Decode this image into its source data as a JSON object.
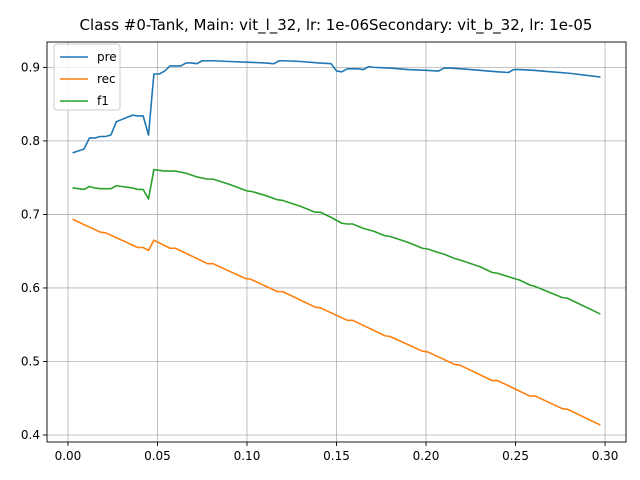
{
  "chart_data": {
    "type": "line",
    "title": "Class #0-Tank, Main: vit_l_32, lr: 1e-06Secondary: vit_b_32, lr: 1e-05",
    "xlabel": "",
    "ylabel": "",
    "xlim": [
      -0.0117,
      0.3117
    ],
    "ylim": [
      0.3905,
      0.9345
    ],
    "x_ticks": [
      0.0,
      0.05,
      0.1,
      0.15,
      0.2,
      0.25,
      0.3
    ],
    "x_tick_labels": [
      "0.00",
      "0.05",
      "0.10",
      "0.15",
      "0.20",
      "0.25",
      "0.30"
    ],
    "y_ticks": [
      0.4,
      0.5,
      0.6,
      0.7,
      0.8,
      0.9
    ],
    "y_tick_labels": [
      "0.4",
      "0.5",
      "0.6",
      "0.7",
      "0.8",
      "0.9"
    ],
    "grid": true,
    "legend_position": "upper-left",
    "series": [
      {
        "name": "pre",
        "color": "#1f77b4",
        "x": [
          0.003,
          0.009,
          0.012,
          0.015,
          0.018,
          0.021,
          0.024,
          0.027,
          0.03,
          0.033,
          0.036,
          0.039,
          0.042,
          0.045,
          0.048,
          0.051,
          0.054,
          0.057,
          0.06,
          0.063,
          0.066,
          0.069,
          0.072,
          0.075,
          0.078,
          0.081,
          0.09,
          0.1,
          0.11,
          0.115,
          0.118,
          0.121,
          0.13,
          0.14,
          0.147,
          0.15,
          0.153,
          0.156,
          0.159,
          0.162,
          0.165,
          0.168,
          0.171,
          0.18,
          0.19,
          0.2,
          0.207,
          0.21,
          0.213,
          0.22,
          0.23,
          0.24,
          0.246,
          0.249,
          0.252,
          0.26,
          0.27,
          0.28,
          0.297
        ],
        "y": [
          0.784,
          0.789,
          0.804,
          0.804,
          0.806,
          0.806,
          0.808,
          0.826,
          0.829,
          0.832,
          0.835,
          0.834,
          0.834,
          0.808,
          0.891,
          0.891,
          0.895,
          0.902,
          0.902,
          0.902,
          0.906,
          0.906,
          0.905,
          0.909,
          0.909,
          0.909,
          0.908,
          0.907,
          0.906,
          0.905,
          0.909,
          0.909,
          0.908,
          0.906,
          0.905,
          0.895,
          0.894,
          0.898,
          0.898,
          0.898,
          0.897,
          0.901,
          0.9,
          0.899,
          0.897,
          0.896,
          0.895,
          0.899,
          0.899,
          0.898,
          0.896,
          0.894,
          0.893,
          0.897,
          0.897,
          0.896,
          0.894,
          0.892,
          0.887
        ]
      },
      {
        "name": "rec",
        "color": "#ff7f0e",
        "x": [
          0.003,
          0.018,
          0.021,
          0.039,
          0.042,
          0.045,
          0.048,
          0.057,
          0.06,
          0.078,
          0.081,
          0.099,
          0.102,
          0.117,
          0.12,
          0.138,
          0.141,
          0.156,
          0.159,
          0.177,
          0.18,
          0.198,
          0.201,
          0.216,
          0.219,
          0.237,
          0.24,
          0.258,
          0.261,
          0.276,
          0.279,
          0.297
        ],
        "y": [
          0.693,
          0.676,
          0.675,
          0.655,
          0.655,
          0.651,
          0.665,
          0.654,
          0.654,
          0.633,
          0.633,
          0.613,
          0.612,
          0.595,
          0.595,
          0.574,
          0.573,
          0.556,
          0.556,
          0.535,
          0.534,
          0.514,
          0.513,
          0.496,
          0.495,
          0.474,
          0.474,
          0.453,
          0.453,
          0.436,
          0.435,
          0.414
        ]
      },
      {
        "name": "f1",
        "color": "#2ca02c",
        "x": [
          0.003,
          0.009,
          0.012,
          0.015,
          0.018,
          0.024,
          0.027,
          0.03,
          0.036,
          0.039,
          0.042,
          0.045,
          0.048,
          0.054,
          0.06,
          0.066,
          0.072,
          0.078,
          0.081,
          0.09,
          0.1,
          0.103,
          0.11,
          0.117,
          0.12,
          0.13,
          0.138,
          0.141,
          0.147,
          0.153,
          0.156,
          0.159,
          0.165,
          0.171,
          0.177,
          0.18,
          0.19,
          0.198,
          0.201,
          0.207,
          0.21,
          0.216,
          0.219,
          0.23,
          0.237,
          0.24,
          0.249,
          0.252,
          0.258,
          0.261,
          0.27,
          0.276,
          0.279,
          0.297
        ],
        "y": [
          0.736,
          0.734,
          0.738,
          0.736,
          0.735,
          0.735,
          0.739,
          0.738,
          0.736,
          0.734,
          0.734,
          0.721,
          0.761,
          0.759,
          0.759,
          0.756,
          0.751,
          0.748,
          0.748,
          0.741,
          0.732,
          0.731,
          0.726,
          0.72,
          0.719,
          0.711,
          0.703,
          0.703,
          0.696,
          0.688,
          0.687,
          0.687,
          0.681,
          0.677,
          0.671,
          0.67,
          0.662,
          0.654,
          0.653,
          0.648,
          0.646,
          0.64,
          0.638,
          0.629,
          0.621,
          0.62,
          0.613,
          0.611,
          0.604,
          0.602,
          0.593,
          0.587,
          0.586,
          0.565
        ]
      }
    ]
  }
}
